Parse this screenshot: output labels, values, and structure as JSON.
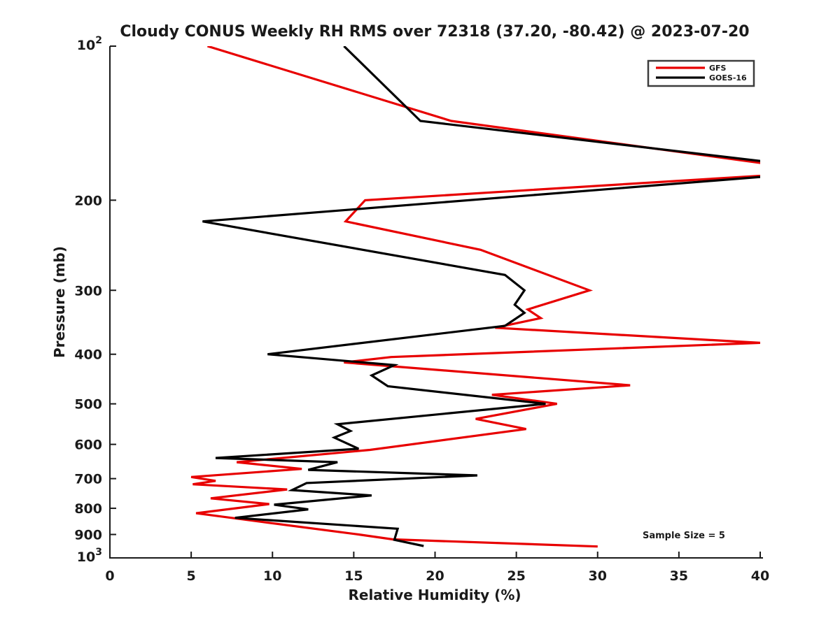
{
  "figure": {
    "background": "#ffffff",
    "axis_color": "#1a1a1a",
    "text_color": "#1a1a1a"
  },
  "chart_data": {
    "type": "line",
    "title": "Cloudy CONUS Weekly RH RMS over 72318 (37.20, -80.42) @ 2023-07-20",
    "xlabel": "Relative Humidity (%)",
    "ylabel": "Pressure (mb)",
    "annotation": "Sample Size = 5",
    "xlim": [
      0,
      40
    ],
    "ylim": [
      100,
      1000
    ],
    "y_scale": "log",
    "y_direction": "reversed",
    "grid": false,
    "legend_position": "top-right",
    "x_ticks": [
      0,
      5,
      10,
      15,
      20,
      25,
      30,
      35,
      40
    ],
    "y_ticks": [
      100,
      200,
      300,
      400,
      500,
      600,
      700,
      800,
      900,
      1000
    ],
    "y_tick_labels": [
      "10^2",
      "200",
      "300",
      "400",
      "500",
      "600",
      "700",
      "800",
      "900",
      "10^3"
    ],
    "units_note": "points are [pressure_mb, rh_rms_percent]; RH values above 40 run off-scale and are clipped at the right edge",
    "series": [
      {
        "name": "GFS",
        "color": "#e80000",
        "points": [
          [
            100,
            6.0
          ],
          [
            140,
            21.0
          ],
          [
            176,
            44.0
          ],
          [
            200,
            15.7
          ],
          [
            220,
            14.5
          ],
          [
            250,
            22.8
          ],
          [
            300,
            29.5
          ],
          [
            327,
            25.7
          ],
          [
            340,
            26.5
          ],
          [
            355,
            23.7
          ],
          [
            380,
            40.0
          ],
          [
            405,
            17.3
          ],
          [
            415,
            14.4
          ],
          [
            460,
            32.0
          ],
          [
            480,
            23.5
          ],
          [
            500,
            27.5
          ],
          [
            535,
            22.5
          ],
          [
            560,
            25.6
          ],
          [
            615,
            16.0
          ],
          [
            650,
            7.8
          ],
          [
            670,
            11.8
          ],
          [
            695,
            5.0
          ],
          [
            707,
            6.5
          ],
          [
            718,
            5.1
          ],
          [
            735,
            10.9
          ],
          [
            765,
            6.2
          ],
          [
            785,
            9.8
          ],
          [
            818,
            5.3
          ],
          [
            850,
            9.3
          ],
          [
            900,
            15.3
          ],
          [
            920,
            17.4
          ],
          [
            950,
            30.0
          ]
        ]
      },
      {
        "name": "GOES-16",
        "color": "#000000",
        "points": [
          [
            100,
            14.4
          ],
          [
            140,
            19.1
          ],
          [
            175,
            45.0
          ],
          [
            220,
            5.7
          ],
          [
            280,
            24.3
          ],
          [
            300,
            25.5
          ],
          [
            320,
            24.9
          ],
          [
            332,
            25.5
          ],
          [
            352,
            24.3
          ],
          [
            400,
            9.7
          ],
          [
            420,
            17.5
          ],
          [
            440,
            16.1
          ],
          [
            462,
            17.1
          ],
          [
            500,
            26.8
          ],
          [
            548,
            14.0
          ],
          [
            565,
            14.8
          ],
          [
            582,
            13.8
          ],
          [
            612,
            15.3
          ],
          [
            638,
            6.5
          ],
          [
            650,
            14.0
          ],
          [
            673,
            12.2
          ],
          [
            690,
            22.6
          ],
          [
            714,
            12.1
          ],
          [
            737,
            11.2
          ],
          [
            755,
            16.1
          ],
          [
            787,
            10.1
          ],
          [
            804,
            12.2
          ],
          [
            835,
            7.7
          ],
          [
            877,
            17.7
          ],
          [
            922,
            17.5
          ],
          [
            948,
            19.3
          ]
        ]
      }
    ]
  },
  "legend": {
    "entries": [
      {
        "label": "GFS",
        "color": "#e80000"
      },
      {
        "label": "GOES-16",
        "color": "#000000"
      }
    ]
  }
}
